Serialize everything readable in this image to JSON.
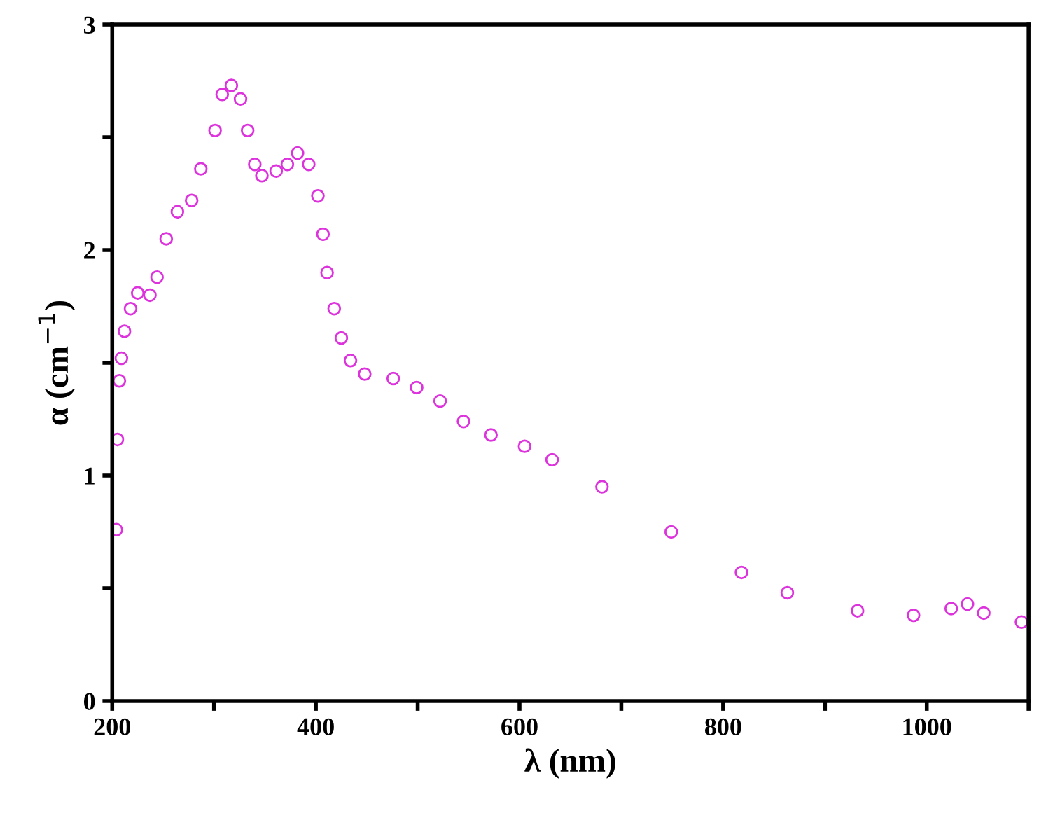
{
  "chart_data": {
    "type": "scatter",
    "xlabel": "λ (nm)",
    "ylabel": "α (cm$^{−1}$)",
    "x": [
      204,
      205,
      207,
      209,
      212,
      218,
      225,
      237,
      244,
      253,
      264,
      278,
      287,
      301,
      308,
      317,
      326,
      333,
      340,
      347,
      361,
      372,
      382,
      393,
      402,
      407,
      411,
      418,
      425,
      434,
      448,
      476,
      499,
      522,
      545,
      572,
      605,
      632,
      681,
      749,
      818,
      863,
      932,
      987,
      1024,
      1040,
      1056,
      1093
    ],
    "series": [
      {
        "color": "#dd33dd",
        "values": [
          0.76,
          1.16,
          1.42,
          1.52,
          1.64,
          1.74,
          1.81,
          1.8,
          1.88,
          2.05,
          2.17,
          2.22,
          2.36,
          2.53,
          2.69,
          2.73,
          2.67,
          2.53,
          2.38,
          2.33,
          2.35,
          2.38,
          2.43,
          2.38,
          2.24,
          2.07,
          1.9,
          1.74,
          1.61,
          1.51,
          1.45,
          1.43,
          1.39,
          1.33,
          1.24,
          1.18,
          1.13,
          1.07,
          0.95,
          0.75,
          0.57,
          0.48,
          0.4,
          0.38,
          0.41,
          0.43,
          0.39,
          0.35
        ]
      }
    ],
    "marker": "circle",
    "grid": false,
    "legend": false,
    "xlim": [
      200,
      1100
    ],
    "ylim": [
      0,
      3
    ],
    "xticks": [
      200,
      {
        "value": 300,
        "label": null
      },
      400,
      {
        "value": 500,
        "label": null
      },
      600,
      {
        "value": 700,
        "label": null
      },
      800,
      {
        "value": 900,
        "label": null
      },
      1000,
      {
        "value": 1100,
        "label": null
      }
    ],
    "yticks": [
      0,
      {
        "value": 0.5,
        "label": null
      },
      1,
      {
        "value": 1.5,
        "label": null
      },
      2,
      {
        "value": 2.5,
        "label": null
      },
      3
    ]
  }
}
